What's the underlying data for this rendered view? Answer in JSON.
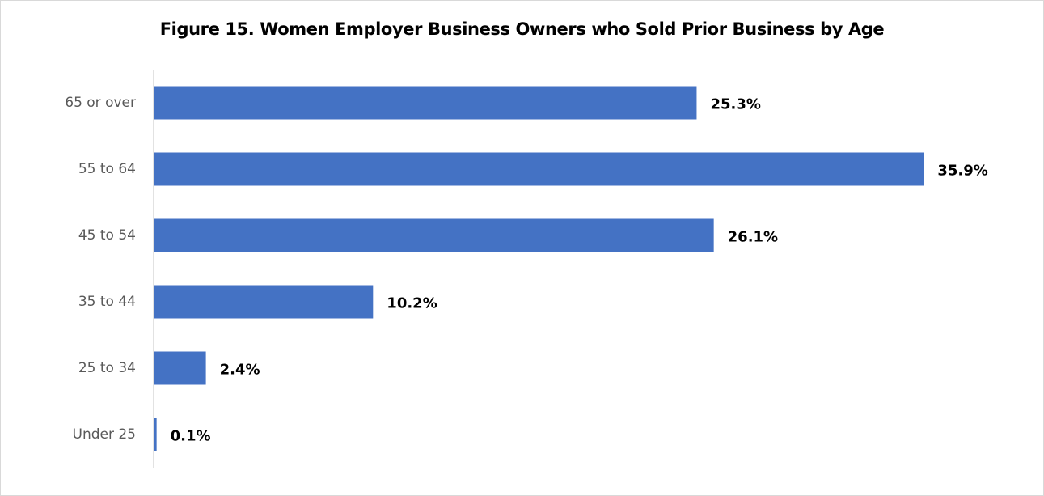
{
  "chart_data": {
    "type": "bar",
    "orientation": "horizontal",
    "title": "Figure 15. Women Employer Business Owners who Sold Prior Business by Age",
    "xlabel": "",
    "ylabel": "",
    "categories": [
      "65 or over",
      "55 to 64",
      "45 to 54",
      "35 to 44",
      "25 to 34",
      "Under 25"
    ],
    "values": [
      25.3,
      35.9,
      26.1,
      10.2,
      2.4,
      0.1
    ],
    "data_labels": [
      "25.3%",
      "35.9%",
      "26.1%",
      "10.2%",
      "2.4%",
      "0.1%"
    ],
    "xlim": [
      0,
      36
    ],
    "grid": false,
    "legend": "none",
    "bar_color": "#4472C4",
    "axis_color": "#d9d9d9"
  }
}
